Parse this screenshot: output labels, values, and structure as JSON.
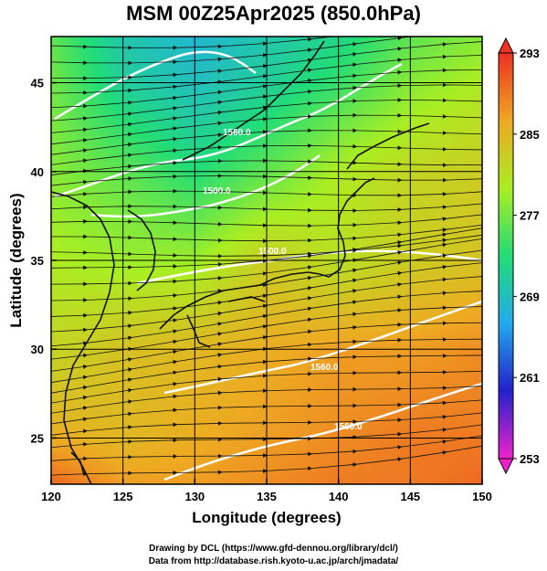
{
  "title": "MSM 00Z25Apr2025 (850.0hPa)",
  "xlabel": "Longitude (degrees)",
  "ylabel": "Latitude  (degrees)",
  "credits": {
    "drawing": "Drawing by DCL (https://www.gfd-dennou.org/library/dcl/)",
    "data": "Data from http://database.rish.kyoto-u.ac.jp/arch/jmadata/"
  },
  "chart_data": {
    "type": "heatmap",
    "field": "temperature",
    "xlim": [
      120,
      150
    ],
    "ylim": [
      22.4,
      47.6
    ],
    "xticks": [
      120,
      125,
      130,
      135,
      140,
      145,
      150
    ],
    "yticks": [
      25,
      30,
      35,
      40,
      45
    ],
    "grid": true,
    "colorbar": {
      "min": 253,
      "max": 293,
      "ticks": [
        253,
        261,
        269,
        277,
        285,
        293
      ],
      "colors": [
        "#ee22cc",
        "#2222cc",
        "#22aaee",
        "#22dd77",
        "#aaee22",
        "#eeaa22",
        "#ee3322"
      ]
    },
    "temperature_grid": {
      "lon": [
        120,
        125,
        130,
        135,
        140,
        145,
        150
      ],
      "lat": [
        47.6,
        45,
        40,
        35,
        30,
        25,
        22.4
      ],
      "values": [
        [
          276,
          270,
          268,
          270,
          272,
          276,
          278
        ],
        [
          277,
          271,
          269,
          271,
          274,
          278,
          280
        ],
        [
          278,
          276,
          273,
          276,
          280,
          282,
          283
        ],
        [
          280,
          279,
          279,
          283,
          281,
          283,
          284
        ],
        [
          282,
          284,
          285,
          286,
          287,
          287,
          288
        ],
        [
          286,
          285,
          286,
          287,
          288,
          289,
          289
        ],
        [
          290,
          287,
          287,
          288,
          289,
          289,
          290
        ]
      ]
    },
    "contour_labels": [
      "1560.0",
      "1500.0",
      "1500.0",
      "1560.0",
      "1560.0"
    ]
  }
}
